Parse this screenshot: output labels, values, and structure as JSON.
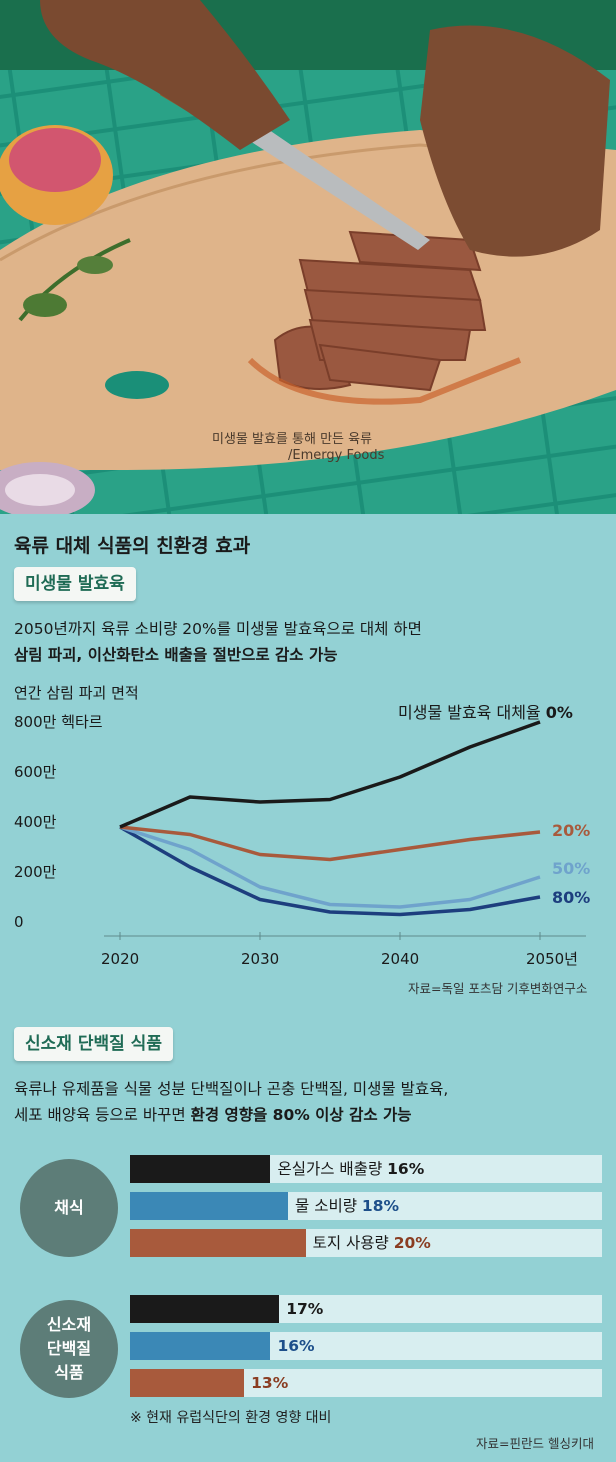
{
  "photo": {
    "caption_line1": "미생물 발효를 통해 만든 육류",
    "caption_line2": "/Emergy Foods"
  },
  "title": "육류 대체 식품의 친환경 효과",
  "section1": {
    "pill": "미생물 발효육",
    "text1": "2050년까지 육류 소비량 20%를 미생물 발효육으로 대체 하면",
    "text2": "삼림 파괴, 이산화탄소 배출을 절반으로 감소 가능",
    "source": "자료=독일 포츠담 기후변화연구소"
  },
  "section2": {
    "pill": "신소재 단백질 식품",
    "text1": "육류나 유제품을 식물 성분 단백질이나 곤충 단백질, 미생물 발효육,",
    "text2a": "세포 배양육 등으로 바꾸면 ",
    "text2b": "환경 영향을 80% 이상 감소 가능",
    "note": "※ 현재 유럽식단의 환경 영향 대비",
    "source": "자료=핀란드 헬싱키대"
  },
  "colors": {
    "background": "#93d1d4",
    "black": "#1a1a1a",
    "brown": "#a85a3c",
    "light_blue": "#6fa3cc",
    "navy": "#1d3e7e",
    "bar_blue": "#3b88b6",
    "bar_track": "#d8eef0"
  },
  "chart_data": [
    {
      "type": "line",
      "title": "연간 삼림 파괴 면적",
      "ylabel": "연간 삼림 파괴 면적",
      "y_ticks": [
        "800만 헥타르",
        "600만",
        "400만",
        "200만",
        "0"
      ],
      "y_tick_values": [
        8000000,
        6000000,
        4000000,
        2000000,
        0
      ],
      "x_ticks": [
        "2020",
        "2030",
        "2040",
        "2050년"
      ],
      "x_tick_values": [
        2020,
        2030,
        2040,
        2050
      ],
      "xlim": [
        2020,
        2050
      ],
      "ylim": [
        0,
        8000000
      ],
      "x": [
        2020,
        2025,
        2030,
        2035,
        2040,
        2045,
        2050
      ],
      "series": [
        {
          "name": "미생물 발효육 대체율",
          "label_prefix": "미생물 발효육 대체율 ",
          "label": "0%",
          "color": "#1a1a1a",
          "values": [
            3800000,
            5000000,
            4800000,
            4900000,
            5800000,
            7000000,
            8000000
          ]
        },
        {
          "name": "20%",
          "label": "20%",
          "color": "#a85a3c",
          "values": [
            3800000,
            3500000,
            2700000,
            2500000,
            2900000,
            3300000,
            3600000
          ]
        },
        {
          "name": "50%",
          "label": "50%",
          "color": "#6fa3cc",
          "values": [
            3800000,
            2900000,
            1400000,
            700000,
            600000,
            900000,
            1800000
          ]
        },
        {
          "name": "80%",
          "label": "80%",
          "color": "#1d3e7e",
          "values": [
            3800000,
            2200000,
            900000,
            400000,
            300000,
            500000,
            1000000
          ]
        }
      ]
    },
    {
      "type": "bar",
      "groups": [
        {
          "name": "채식",
          "bars": [
            {
              "label": "온실가스 배출량",
              "value": 16,
              "display": "16%",
              "color": "#1a1a1a",
              "value_color": "#1a1a1a"
            },
            {
              "label": "물 소비량",
              "value": 18,
              "display": "18%",
              "color": "#3b88b6",
              "value_color": "#1d4f8a"
            },
            {
              "label": "토지 사용량",
              "value": 20,
              "display": "20%",
              "color": "#a85a3c",
              "value_color": "#8a3d22"
            }
          ]
        },
        {
          "name": "신소재\n단백질\n식품",
          "name_lines": [
            "신소재",
            "단백질",
            "식품"
          ],
          "bars": [
            {
              "label": "",
              "value": 17,
              "display": "17%",
              "color": "#1a1a1a",
              "value_color": "#1a1a1a"
            },
            {
              "label": "",
              "value": 16,
              "display": "16%",
              "color": "#3b88b6",
              "value_color": "#1d4f8a"
            },
            {
              "label": "",
              "value": 13,
              "display": "13%",
              "color": "#a85a3c",
              "value_color": "#8a3d22"
            }
          ]
        }
      ],
      "xlim": [
        0,
        100
      ]
    }
  ]
}
